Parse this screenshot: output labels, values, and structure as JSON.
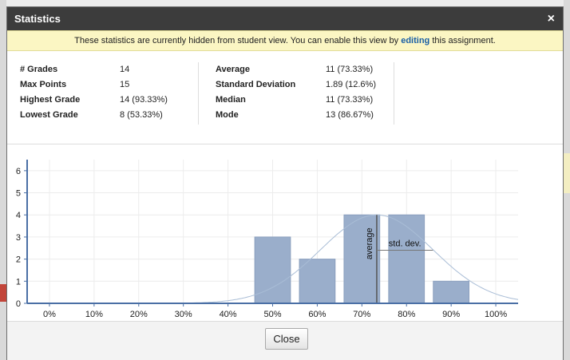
{
  "dialog": {
    "title": "Statistics",
    "close_icon": "×",
    "notice_before": "These statistics are currently hidden from student view. You can enable this view by ",
    "notice_link": "editing",
    "notice_after": " this assignment."
  },
  "stats": {
    "left": [
      {
        "label": "# Grades",
        "value": "14"
      },
      {
        "label": "Max Points",
        "value": "15"
      },
      {
        "label": "Highest Grade",
        "value": "14 (93.33%)"
      },
      {
        "label": "Lowest Grade",
        "value": "8 (53.33%)"
      }
    ],
    "right": [
      {
        "label": "Average",
        "value": "11 (73.33%)"
      },
      {
        "label": "Standard Deviation",
        "value": "1.89 (12.6%)"
      },
      {
        "label": "Median",
        "value": "11 (73.33%)"
      },
      {
        "label": "Mode",
        "value": "13 (86.67%)"
      }
    ]
  },
  "chart_data": {
    "type": "bar",
    "categories": [
      "0%",
      "10%",
      "20%",
      "30%",
      "40%",
      "50%",
      "60%",
      "70%",
      "80%",
      "90%",
      "100%"
    ],
    "bars": [
      {
        "x": 50,
        "value": 3
      },
      {
        "x": 60,
        "value": 2
      },
      {
        "x": 70,
        "value": 4
      },
      {
        "x": 80,
        "value": 4
      },
      {
        "x": 90,
        "value": 1
      }
    ],
    "xlim": [
      -5,
      105
    ],
    "ylim": [
      0,
      6.5
    ],
    "yticks": [
      0,
      1,
      2,
      3,
      4,
      5,
      6
    ],
    "average_x": 73.33,
    "stddev_x": 12.6,
    "annotations": {
      "average": "average",
      "std_dev": "std. dev."
    },
    "colors": {
      "bar": "#9aaecb",
      "bar_stroke": "#8a9fbe",
      "axis": "#4a6fa5",
      "curve": "#a9bdd6",
      "grid": "#ececec"
    },
    "grid": true
  },
  "footer": {
    "close_label": "Close"
  }
}
